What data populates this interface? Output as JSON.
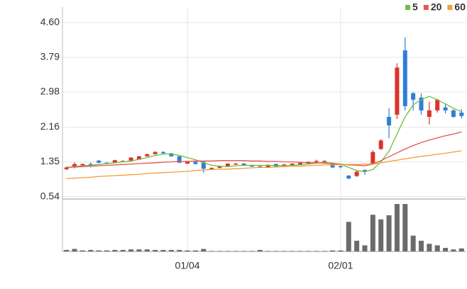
{
  "chart_data": {
    "type": "candlestick",
    "categories": [
      null,
      null,
      null,
      null,
      null,
      null,
      null,
      null,
      null,
      null,
      null,
      null,
      null,
      null,
      null,
      "01/04",
      null,
      null,
      null,
      null,
      null,
      null,
      null,
      null,
      null,
      null,
      null,
      null,
      null,
      null,
      null,
      null,
      null,
      null,
      "02/01",
      null,
      null,
      null,
      null,
      null,
      null,
      null,
      null,
      null,
      null,
      null,
      null,
      null,
      null,
      null
    ],
    "open": [
      1.18,
      1.22,
      1.27,
      1.3,
      1.38,
      1.33,
      1.33,
      1.36,
      1.38,
      1.4,
      1.48,
      1.53,
      1.58,
      1.55,
      1.48,
      1.31,
      1.35,
      1.35,
      1.18,
      1.21,
      1.25,
      1.3,
      1.31,
      1.27,
      1.25,
      1.22,
      1.3,
      1.24,
      1.27,
      1.29,
      1.31,
      1.35,
      1.36,
      1.32,
      1.25,
      1.03,
      1.02,
      1.16,
      1.3,
      1.65,
      2.4,
      2.45,
      3.95,
      2.95,
      2.85,
      2.4,
      2.55,
      2.62,
      2.55,
      2.5
    ],
    "high": [
      1.24,
      1.34,
      1.31,
      1.34,
      1.39,
      1.35,
      1.4,
      1.39,
      1.46,
      1.49,
      1.54,
      1.6,
      1.6,
      1.56,
      1.49,
      1.36,
      1.36,
      1.36,
      1.22,
      1.26,
      1.32,
      1.33,
      1.32,
      1.28,
      1.26,
      1.29,
      1.31,
      1.3,
      1.32,
      1.34,
      1.36,
      1.4,
      1.39,
      1.33,
      1.3,
      1.04,
      1.16,
      1.18,
      1.62,
      1.88,
      2.6,
      3.65,
      4.25,
      2.98,
      2.95,
      2.75,
      2.82,
      2.7,
      2.58,
      2.58
    ],
    "low": [
      1.16,
      1.2,
      1.26,
      1.22,
      1.32,
      1.31,
      1.33,
      1.35,
      1.37,
      1.4,
      1.47,
      1.52,
      1.54,
      1.47,
      1.32,
      1.3,
      1.29,
      1.1,
      1.17,
      1.2,
      1.24,
      1.29,
      1.26,
      1.23,
      1.22,
      1.21,
      1.23,
      1.23,
      1.26,
      1.28,
      1.3,
      1.34,
      1.35,
      1.21,
      1.2,
      0.95,
      1.0,
      1.05,
      1.28,
      1.63,
      1.9,
      2.35,
      2.55,
      2.55,
      2.45,
      2.22,
      2.5,
      2.48,
      2.38,
      2.36
    ],
    "close": [
      1.22,
      1.3,
      1.3,
      1.29,
      1.33,
      1.32,
      1.39,
      1.37,
      1.45,
      1.48,
      1.53,
      1.58,
      1.55,
      1.48,
      1.33,
      1.35,
      1.3,
      1.19,
      1.21,
      1.25,
      1.31,
      1.31,
      1.27,
      1.24,
      1.24,
      1.28,
      1.24,
      1.29,
      1.31,
      1.33,
      1.35,
      1.37,
      1.37,
      1.22,
      1.24,
      0.96,
      1.12,
      1.14,
      1.58,
      1.85,
      2.2,
      3.55,
      2.65,
      2.8,
      2.55,
      2.55,
      2.8,
      2.55,
      2.4,
      2.42
    ],
    "volume": [
      3,
      5,
      2,
      3,
      2,
      2,
      3,
      3,
      4,
      4,
      4,
      3,
      3,
      3,
      3,
      2,
      2,
      5,
      1,
      1,
      1,
      1,
      1,
      1,
      3,
      1,
      1,
      1,
      1,
      1,
      1,
      1,
      1,
      2,
      2,
      58,
      21,
      12,
      72,
      63,
      71,
      93,
      93,
      31,
      21,
      15,
      12,
      7,
      4,
      6
    ],
    "up_color": "#d9342b",
    "down_color": "#2f7ed8",
    "volume_color": "#6b6b6b",
    "series": [
      {
        "name": "5",
        "color": "#6cbf3f",
        "values": [
          1.22,
          1.24,
          1.26,
          1.27,
          1.29,
          1.31,
          1.33,
          1.35,
          1.37,
          1.41,
          1.45,
          1.5,
          1.53,
          1.54,
          1.5,
          1.45,
          1.4,
          1.33,
          1.27,
          1.25,
          1.24,
          1.26,
          1.27,
          1.27,
          1.27,
          1.27,
          1.26,
          1.26,
          1.27,
          1.28,
          1.3,
          1.32,
          1.34,
          1.32,
          1.3,
          1.22,
          1.15,
          1.12,
          1.17,
          1.35,
          1.6,
          2.0,
          2.4,
          2.68,
          2.8,
          2.88,
          2.8,
          2.7,
          2.6,
          2.52
        ]
      },
      {
        "name": "20",
        "color": "#e8534f",
        "values": [
          1.22,
          1.23,
          1.24,
          1.25,
          1.26,
          1.27,
          1.28,
          1.29,
          1.3,
          1.31,
          1.32,
          1.33,
          1.34,
          1.35,
          1.36,
          1.36,
          1.37,
          1.37,
          1.37,
          1.38,
          1.38,
          1.38,
          1.38,
          1.37,
          1.37,
          1.36,
          1.36,
          1.35,
          1.35,
          1.34,
          1.33,
          1.33,
          1.32,
          1.31,
          1.3,
          1.28,
          1.27,
          1.26,
          1.3,
          1.38,
          1.47,
          1.56,
          1.65,
          1.73,
          1.8,
          1.86,
          1.91,
          1.96,
          2.0,
          2.05
        ]
      },
      {
        "name": "60",
        "color": "#f39c3a",
        "values": [
          0.96,
          0.97,
          0.98,
          0.99,
          1.01,
          1.02,
          1.03,
          1.04,
          1.05,
          1.06,
          1.08,
          1.09,
          1.1,
          1.11,
          1.12,
          1.13,
          1.15,
          1.16,
          1.17,
          1.18,
          1.18,
          1.19,
          1.2,
          1.21,
          1.22,
          1.22,
          1.23,
          1.24,
          1.25,
          1.25,
          1.26,
          1.27,
          1.28,
          1.28,
          1.29,
          1.29,
          1.29,
          1.3,
          1.3,
          1.33,
          1.36,
          1.39,
          1.42,
          1.45,
          1.48,
          1.5,
          1.53,
          1.55,
          1.58,
          1.61
        ]
      }
    ],
    "ylim": [
      0.5,
      4.96
    ],
    "yticks": [
      {
        "value": 4.6,
        "label": "4.60"
      },
      {
        "value": 3.79,
        "label": "3.79"
      },
      {
        "value": 2.98,
        "label": "2.98"
      },
      {
        "value": 2.16,
        "label": "2.16"
      },
      {
        "value": 1.35,
        "label": "1.35"
      },
      {
        "value": 0.54,
        "label": "0.54"
      }
    ],
    "y2lim": [
      0,
      100
    ],
    "grid": true
  }
}
